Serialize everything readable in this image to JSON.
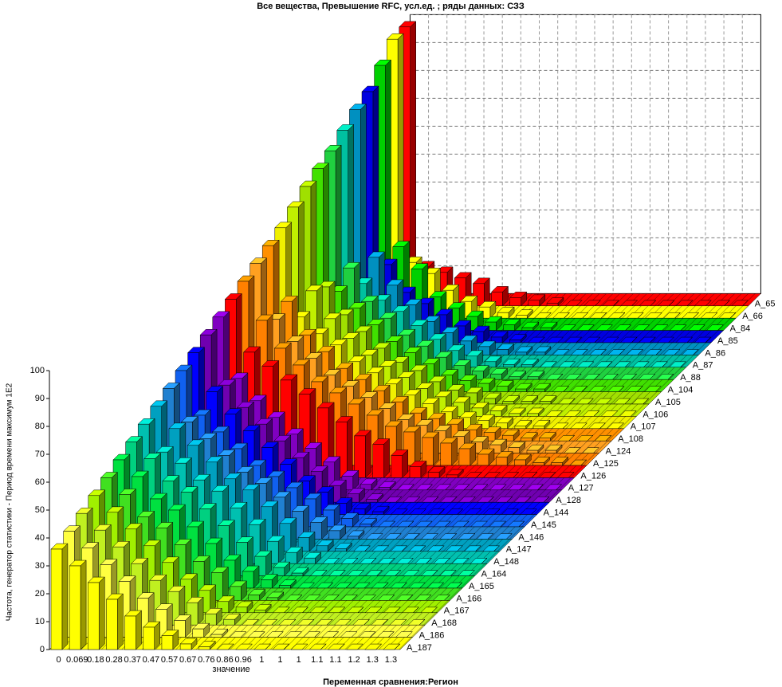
{
  "chart_data": {
    "type": "bar3d",
    "title": "Все вещества, Превышение RFC,  усл.ед.  ; ряды данных: СЗЗ",
    "x_label": "значение",
    "z_label": "Переменная сравнения:Регион",
    "y_label": "Частота, генератор статистики - Период времени максимум 1E2",
    "ylim": [
      0,
      100
    ],
    "yticks": [
      0,
      10,
      20,
      30,
      40,
      50,
      60,
      70,
      80,
      90,
      100
    ],
    "grid": true,
    "categories": [
      "0",
      "0.069",
      "0.18",
      "0.28",
      "0.37",
      "0.47",
      "0.57",
      "0.67",
      "0.76",
      "0.86",
      "0.96",
      "1",
      "1",
      "1",
      "1.1",
      "1.1",
      "1.2",
      "1.3",
      "1.3"
    ],
    "series": [
      {
        "name": "A_65",
        "color": "#ff0000",
        "values": [
          100,
          14,
          12,
          10,
          8,
          5,
          3,
          2,
          1,
          0,
          0,
          0,
          0,
          0,
          0,
          0,
          0,
          0,
          0
        ]
      },
      {
        "name": "A_66",
        "color": "#ffff00",
        "values": [
          100,
          20,
          16,
          10,
          6,
          4,
          2,
          1,
          0,
          0,
          0,
          0,
          0,
          0,
          0,
          0,
          0,
          0,
          0
        ]
      },
      {
        "name": "A_84",
        "color": "#00d000",
        "values": [
          95,
          30,
          22,
          12,
          8,
          5,
          3,
          2,
          1,
          1,
          0,
          0,
          0,
          0,
          0,
          0,
          0,
          0,
          0
        ]
      },
      {
        "name": "A_85",
        "color": "#0000e0",
        "values": [
          90,
          28,
          18,
          14,
          10,
          6,
          4,
          2,
          1,
          0,
          0,
          0,
          0,
          0,
          0,
          0,
          0,
          0,
          0
        ]
      },
      {
        "name": "A_86",
        "color": "#0090c0",
        "values": [
          88,
          35,
          25,
          18,
          12,
          8,
          5,
          3,
          2,
          1,
          1,
          0,
          0,
          0,
          0,
          0,
          0,
          0,
          0
        ]
      },
      {
        "name": "A_87",
        "color": "#00c0a0",
        "values": [
          85,
          30,
          24,
          20,
          15,
          10,
          6,
          4,
          2,
          1,
          1,
          0,
          0,
          0,
          0,
          0,
          0,
          0,
          0
        ]
      },
      {
        "name": "A_88",
        "color": "#20d040",
        "values": [
          82,
          40,
          28,
          22,
          16,
          12,
          8,
          5,
          3,
          2,
          1,
          1,
          0,
          0,
          0,
          0,
          0,
          0,
          0
        ]
      },
      {
        "name": "A_104",
        "color": "#40e000",
        "values": [
          80,
          36,
          30,
          24,
          18,
          14,
          10,
          6,
          4,
          3,
          2,
          1,
          1,
          0,
          0,
          0,
          0,
          0,
          0
        ]
      },
      {
        "name": "A_105",
        "color": "#a0e000",
        "values": [
          78,
          42,
          32,
          26,
          20,
          15,
          12,
          8,
          5,
          4,
          2,
          1,
          1,
          1,
          0,
          0,
          0,
          0,
          0
        ]
      },
      {
        "name": "A_106",
        "color": "#c0f000",
        "values": [
          75,
          45,
          35,
          28,
          22,
          18,
          14,
          10,
          7,
          5,
          3,
          2,
          1,
          1,
          0,
          0,
          0,
          0,
          0
        ]
      },
      {
        "name": "A_107",
        "color": "#f0f000",
        "values": [
          72,
          40,
          34,
          30,
          24,
          20,
          16,
          12,
          9,
          6,
          4,
          3,
          2,
          1,
          1,
          0,
          0,
          0,
          0
        ]
      },
      {
        "name": "A_108",
        "color": "#ff9000",
        "values": [
          70,
          50,
          38,
          32,
          26,
          22,
          18,
          14,
          10,
          8,
          6,
          4,
          3,
          2,
          1,
          1,
          0,
          0,
          0
        ]
      },
      {
        "name": "A_124",
        "color": "#ffa020",
        "values": [
          68,
          48,
          40,
          34,
          28,
          24,
          20,
          16,
          12,
          10,
          8,
          6,
          4,
          3,
          2,
          1,
          1,
          0,
          0
        ]
      },
      {
        "name": "A_125",
        "color": "#ff8000",
        "values": [
          66,
          52,
          42,
          36,
          30,
          26,
          22,
          18,
          14,
          12,
          10,
          8,
          6,
          4,
          3,
          2,
          1,
          1,
          0
        ]
      },
      {
        "name": "A_126",
        "color": "#ff0000",
        "values": [
          64,
          45,
          40,
          35,
          30,
          25,
          20,
          15,
          12,
          8,
          4,
          2,
          1,
          0,
          0,
          0,
          0,
          0,
          0
        ]
      },
      {
        "name": "A_127",
        "color": "#8000c0",
        "values": [
          62,
          40,
          32,
          26,
          20,
          15,
          10,
          5,
          2,
          1,
          0,
          0,
          0,
          0,
          0,
          0,
          0,
          0,
          0
        ]
      },
      {
        "name": "A_128",
        "color": "#7000b0",
        "values": [
          60,
          42,
          34,
          28,
          22,
          16,
          11,
          6,
          3,
          1,
          0,
          0,
          0,
          0,
          0,
          0,
          0,
          0,
          0
        ]
      },
      {
        "name": "A_144",
        "color": "#0000ff",
        "values": [
          58,
          44,
          36,
          30,
          24,
          18,
          12,
          8,
          4,
          2,
          1,
          0,
          0,
          0,
          0,
          0,
          0,
          0,
          0
        ]
      },
      {
        "name": "A_145",
        "color": "#1060f0",
        "values": [
          56,
          40,
          34,
          28,
          22,
          18,
          14,
          10,
          6,
          3,
          1,
          0,
          0,
          0,
          0,
          0,
          0,
          0,
          0
        ]
      },
      {
        "name": "A_146",
        "color": "#2080d0",
        "values": [
          54,
          42,
          36,
          30,
          24,
          20,
          15,
          10,
          6,
          3,
          1,
          0,
          0,
          0,
          0,
          0,
          0,
          0,
          0
        ]
      },
      {
        "name": "A_147",
        "color": "#00a0c0",
        "values": [
          52,
          44,
          38,
          32,
          26,
          22,
          16,
          10,
          5,
          2,
          1,
          0,
          0,
          0,
          0,
          0,
          0,
          0,
          0
        ]
      },
      {
        "name": "A_148",
        "color": "#00c0b0",
        "values": [
          50,
          40,
          36,
          30,
          26,
          20,
          14,
          8,
          4,
          2,
          0,
          0,
          0,
          0,
          0,
          0,
          0,
          0,
          0
        ]
      },
      {
        "name": "A_164",
        "color": "#00d080",
        "values": [
          48,
          42,
          34,
          30,
          24,
          18,
          12,
          7,
          3,
          1,
          0,
          0,
          0,
          0,
          0,
          0,
          0,
          0,
          0
        ]
      },
      {
        "name": "A_165",
        "color": "#00e040",
        "values": [
          46,
          40,
          32,
          28,
          22,
          16,
          10,
          6,
          3,
          1,
          0,
          0,
          0,
          0,
          0,
          0,
          0,
          0,
          0
        ]
      },
      {
        "name": "A_166",
        "color": "#40e020",
        "values": [
          44,
          38,
          30,
          26,
          20,
          14,
          10,
          5,
          2,
          1,
          0,
          0,
          0,
          0,
          0,
          0,
          0,
          0,
          0
        ]
      },
      {
        "name": "A_167",
        "color": "#a0f000",
        "values": [
          42,
          36,
          30,
          24,
          18,
          12,
          8,
          4,
          2,
          1,
          0,
          0,
          0,
          0,
          0,
          0,
          0,
          0,
          0
        ]
      },
      {
        "name": "A_168",
        "color": "#c0f020",
        "values": [
          40,
          34,
          28,
          22,
          16,
          12,
          8,
          4,
          2,
          0,
          0,
          0,
          0,
          0,
          0,
          0,
          0,
          0,
          0
        ]
      },
      {
        "name": "A_186",
        "color": "#ffff40",
        "values": [
          38,
          32,
          26,
          20,
          14,
          10,
          6,
          3,
          1,
          0,
          0,
          0,
          0,
          0,
          0,
          0,
          0,
          0,
          0
        ]
      },
      {
        "name": "A_187",
        "color": "#ffff00",
        "values": [
          36,
          30,
          24,
          18,
          12,
          8,
          5,
          2,
          1,
          0,
          0,
          0,
          0,
          0,
          0,
          0,
          0,
          0,
          0
        ]
      }
    ]
  }
}
